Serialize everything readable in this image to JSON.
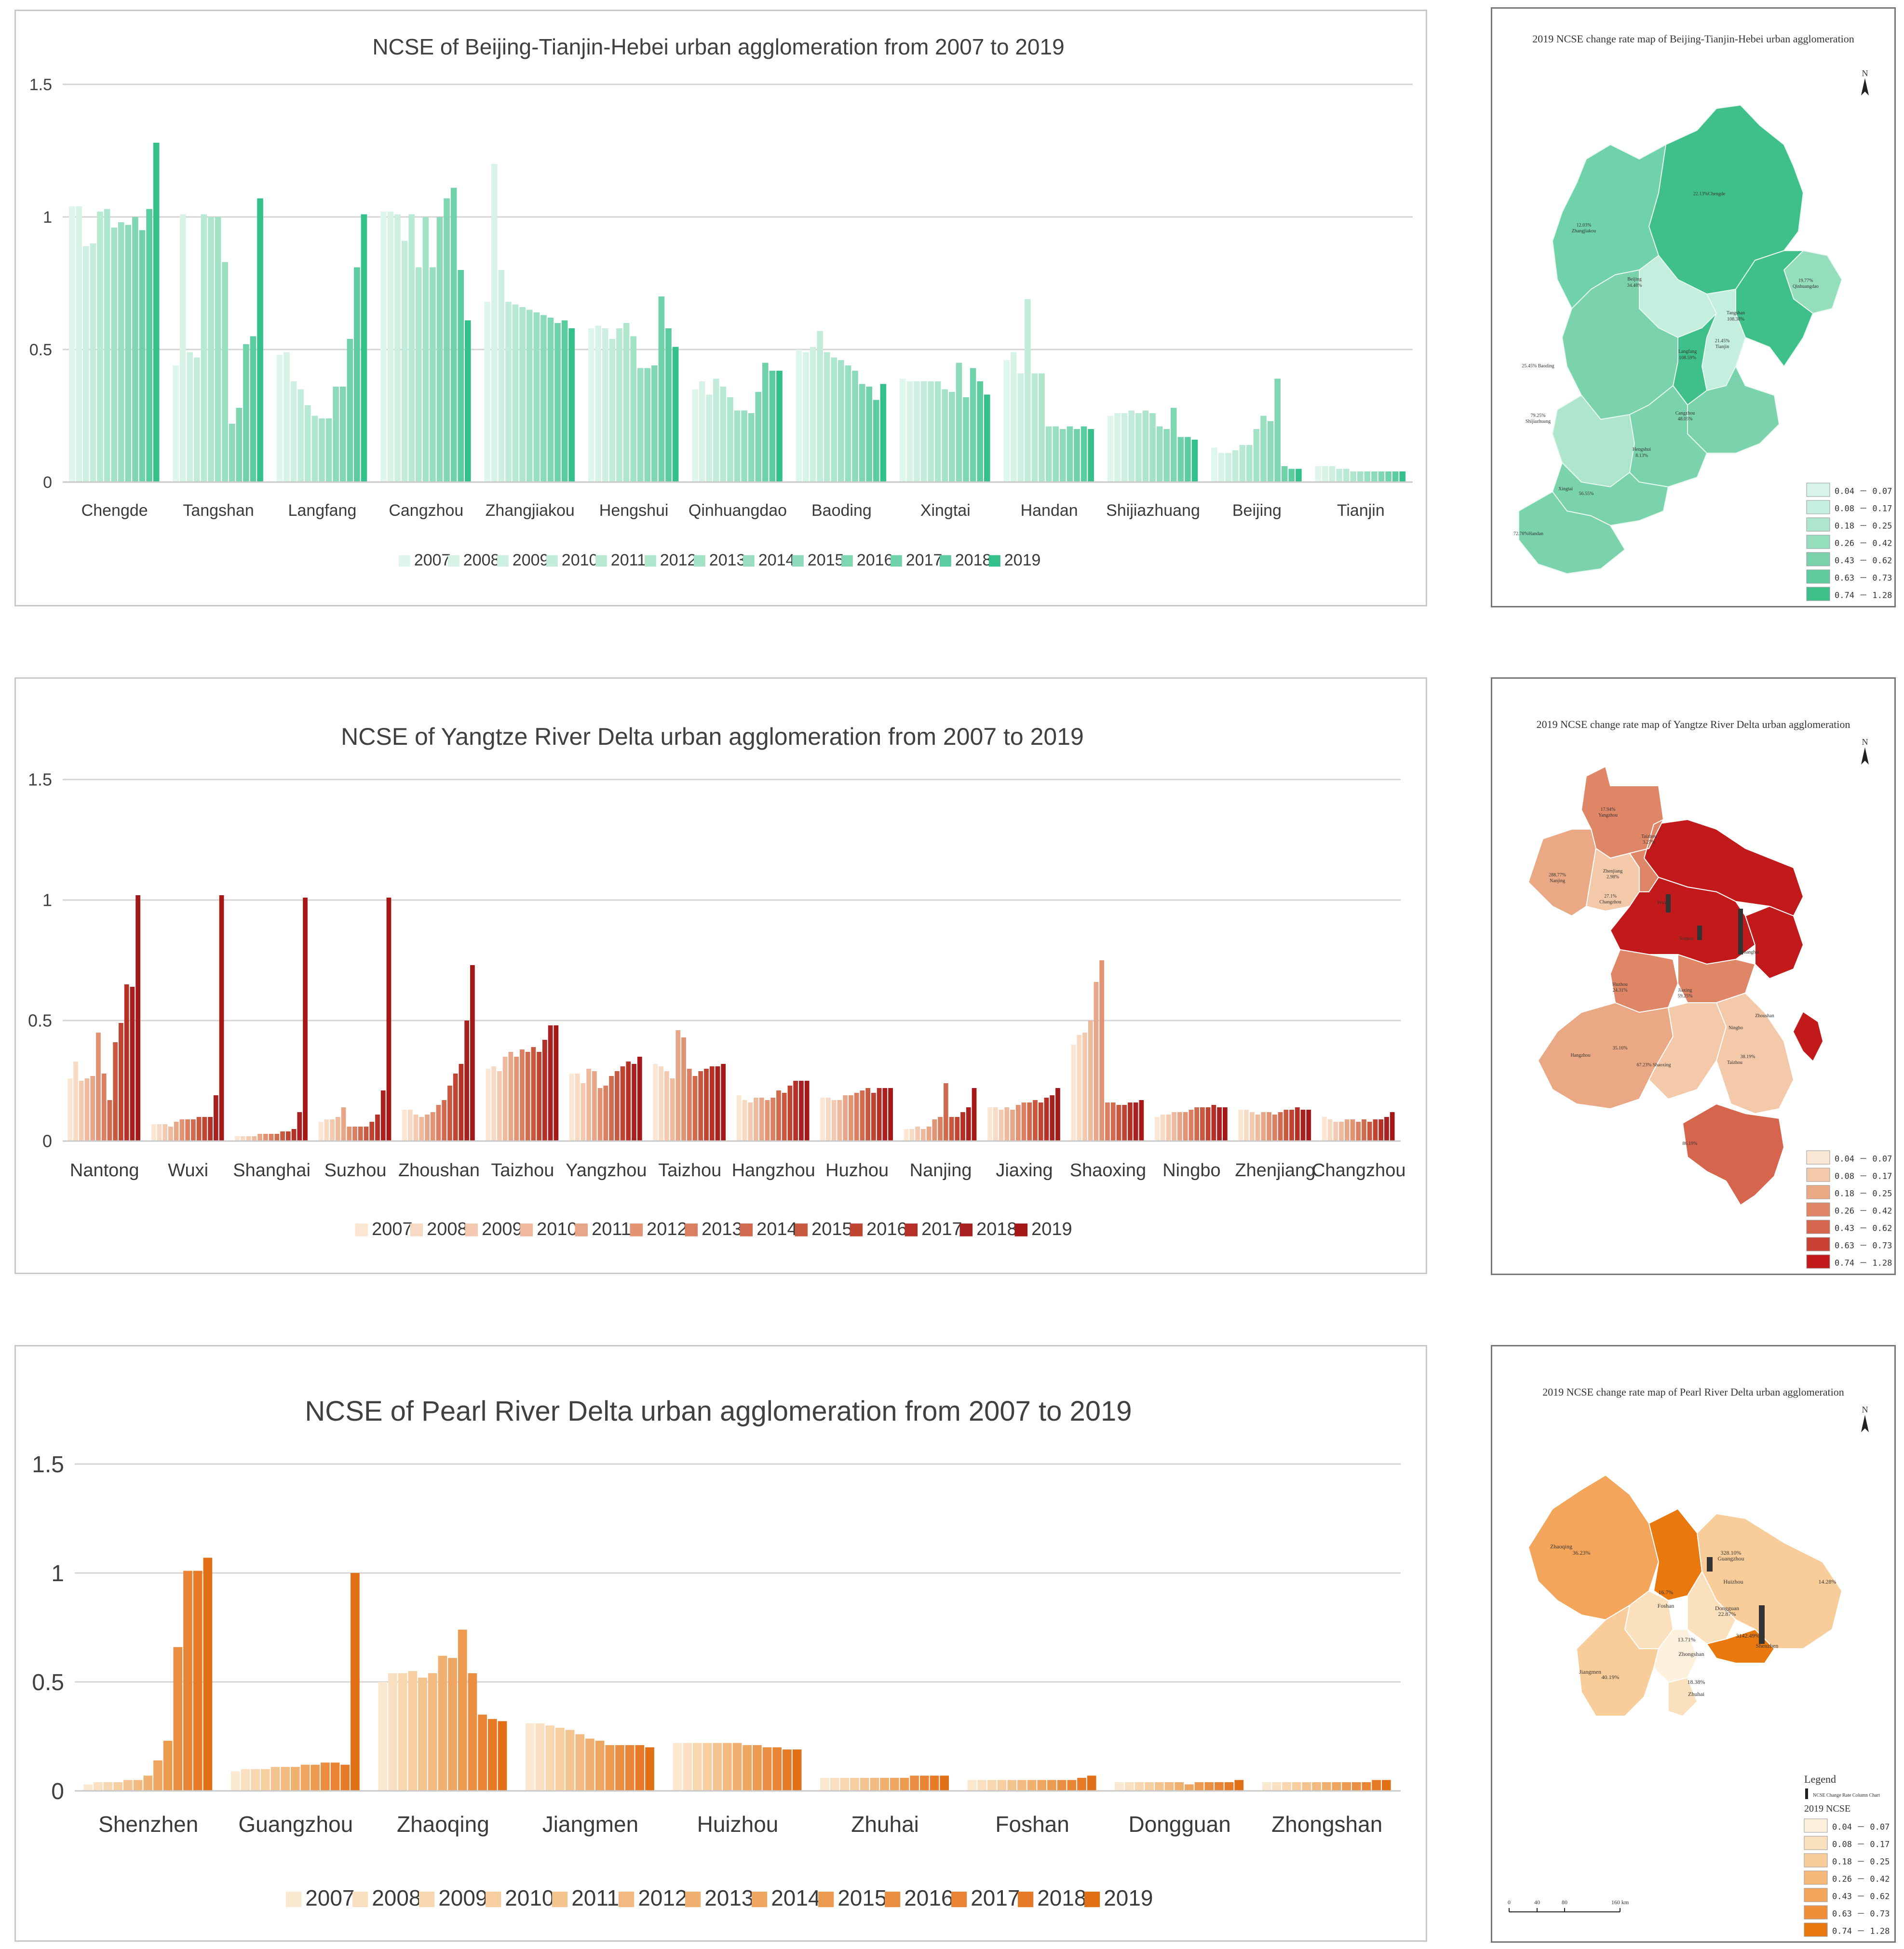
{
  "years": [
    "2007",
    "2008",
    "2009",
    "2010",
    "2011",
    "2012",
    "2013",
    "2014",
    "2015",
    "2016",
    "2017",
    "2018",
    "2019"
  ],
  "chart_data": [
    {
      "type": "bar",
      "title": "NCSE  of  Beijing-Tianjin-Hebei urban agglomeration from 2007 to 2019",
      "ylim": [
        0,
        1.5
      ],
      "yticks": [
        "0",
        "0.5",
        "1",
        "1.5"
      ],
      "yticks_values": [
        0,
        0.5,
        1,
        1.5
      ],
      "colors": [
        "#dff6ec",
        "#d6f3e6",
        "#ccefe0",
        "#c2ecda",
        "#b8e9d3",
        "#aee6cd",
        "#a3e2c6",
        "#98dec0",
        "#8cdaba",
        "#7ed6b2",
        "#6fd2aa",
        "#5bcc9f",
        "#33c08a"
      ],
      "categories": [
        "Chengde",
        "Tangshan",
        "Langfang",
        "Cangzhou",
        "Zhangjiakou",
        "Hengshui",
        "Qinhuangdao",
        "Baoding",
        "Xingtai",
        "Handan",
        "Shijiazhuang",
        "Beijing",
        "Tianjin"
      ],
      "series": [
        {
          "name": "2007",
          "values": [
            1.04,
            0.44,
            0.48,
            1.02,
            0.68,
            0.58,
            0.35,
            0.5,
            0.39,
            0.46,
            0.25,
            0.13,
            0.06
          ]
        },
        {
          "name": "2008",
          "values": [
            1.04,
            1.01,
            0.49,
            1.02,
            1.2,
            0.59,
            0.38,
            0.49,
            0.38,
            0.49,
            0.26,
            0.11,
            0.06
          ]
        },
        {
          "name": "2009",
          "values": [
            0.89,
            0.49,
            0.38,
            1.01,
            0.8,
            0.58,
            0.33,
            0.51,
            0.38,
            0.41,
            0.26,
            0.11,
            0.06
          ]
        },
        {
          "name": "2010",
          "values": [
            0.9,
            0.47,
            0.35,
            0.91,
            0.68,
            0.54,
            0.39,
            0.57,
            0.38,
            0.69,
            0.27,
            0.12,
            0.05
          ]
        },
        {
          "name": "2011",
          "values": [
            1.02,
            1.01,
            0.29,
            1.01,
            0.67,
            0.58,
            0.36,
            0.49,
            0.38,
            0.41,
            0.26,
            0.14,
            0.05
          ]
        },
        {
          "name": "2012",
          "values": [
            1.03,
            1.0,
            0.25,
            0.81,
            0.66,
            0.6,
            0.32,
            0.47,
            0.38,
            0.41,
            0.27,
            0.14,
            0.04
          ]
        },
        {
          "name": "2013",
          "values": [
            0.96,
            1.0,
            0.24,
            1.0,
            0.65,
            0.55,
            0.27,
            0.46,
            0.35,
            0.21,
            0.26,
            0.2,
            0.04
          ]
        },
        {
          "name": "2014",
          "values": [
            0.98,
            0.83,
            0.24,
            0.81,
            0.64,
            0.43,
            0.27,
            0.44,
            0.34,
            0.21,
            0.21,
            0.25,
            0.04
          ]
        },
        {
          "name": "2015",
          "values": [
            0.97,
            0.22,
            0.36,
            1.0,
            0.63,
            0.43,
            0.26,
            0.42,
            0.45,
            0.2,
            0.2,
            0.23,
            0.04
          ]
        },
        {
          "name": "2016",
          "values": [
            1.0,
            0.28,
            0.36,
            1.07,
            0.62,
            0.44,
            0.34,
            0.37,
            0.32,
            0.21,
            0.28,
            0.39,
            0.04
          ]
        },
        {
          "name": "2017",
          "values": [
            0.95,
            0.52,
            0.54,
            1.11,
            0.6,
            0.7,
            0.45,
            0.36,
            0.43,
            0.2,
            0.17,
            0.06,
            0.04
          ]
        },
        {
          "name": "2018",
          "values": [
            1.03,
            0.55,
            0.81,
            0.8,
            0.61,
            0.58,
            0.42,
            0.31,
            0.38,
            0.21,
            0.17,
            0.05,
            0.04
          ]
        },
        {
          "name": "2019",
          "values": [
            1.28,
            1.07,
            1.01,
            0.61,
            0.58,
            0.51,
            0.42,
            0.37,
            0.33,
            0.2,
            0.16,
            0.05,
            0.04
          ]
        }
      ]
    },
    {
      "type": "bar",
      "title": "NCSE of  Yangtze River Delta  urban agglomeration from 2007 to 2019",
      "ylim": [
        0,
        1.5
      ],
      "yticks": [
        "0",
        "0.5",
        "1",
        "1.5"
      ],
      "yticks_values": [
        0,
        0.5,
        1,
        1.5
      ],
      "colors": [
        "#fbe6d4",
        "#f7dac4",
        "#f3cab0",
        "#eeb99d",
        "#e8a688",
        "#e29374",
        "#da7f61",
        "#d16b50",
        "#c8583f",
        "#bf4432",
        "#b53127",
        "#a82020",
        "#a51818"
      ],
      "categories": [
        "Nantong",
        "Wuxi",
        "Shanghai",
        "Suzhou",
        "Zhoushan",
        "Taizhou",
        "Yangzhou",
        "Taizhou",
        "Hangzhou",
        "Huzhou",
        "Nanjing",
        "Jiaxing",
        "Shaoxing",
        "Ningbo",
        "Zhenjiang",
        "Changzhou"
      ],
      "series": [
        {
          "name": "2007",
          "values": [
            0.26,
            0.07,
            0.02,
            0.08,
            0.13,
            0.3,
            0.28,
            0.32,
            0.19,
            0.18,
            0.05,
            0.14,
            0.4,
            0.1,
            0.13,
            0.1
          ]
        },
        {
          "name": "2008",
          "values": [
            0.33,
            0.07,
            0.02,
            0.09,
            0.13,
            0.31,
            0.28,
            0.31,
            0.17,
            0.18,
            0.05,
            0.14,
            0.44,
            0.11,
            0.13,
            0.09
          ]
        },
        {
          "name": "2009",
          "values": [
            0.25,
            0.07,
            0.02,
            0.09,
            0.11,
            0.29,
            0.24,
            0.29,
            0.16,
            0.17,
            0.06,
            0.13,
            0.45,
            0.11,
            0.12,
            0.08
          ]
        },
        {
          "name": "2010",
          "values": [
            0.26,
            0.06,
            0.02,
            0.1,
            0.1,
            0.35,
            0.3,
            0.26,
            0.18,
            0.17,
            0.05,
            0.14,
            0.5,
            0.12,
            0.11,
            0.08
          ]
        },
        {
          "name": "2011",
          "values": [
            0.27,
            0.08,
            0.03,
            0.14,
            0.11,
            0.37,
            0.29,
            0.46,
            0.18,
            0.19,
            0.06,
            0.13,
            0.66,
            0.12,
            0.12,
            0.09
          ]
        },
        {
          "name": "2012",
          "values": [
            0.45,
            0.09,
            0.03,
            0.06,
            0.12,
            0.35,
            0.22,
            0.43,
            0.17,
            0.19,
            0.09,
            0.15,
            0.75,
            0.12,
            0.12,
            0.09
          ]
        },
        {
          "name": "2013",
          "values": [
            0.28,
            0.09,
            0.03,
            0.06,
            0.15,
            0.38,
            0.23,
            0.3,
            0.18,
            0.2,
            0.1,
            0.16,
            0.16,
            0.13,
            0.11,
            0.08
          ]
        },
        {
          "name": "2014",
          "values": [
            0.17,
            0.09,
            0.03,
            0.06,
            0.17,
            0.37,
            0.27,
            0.27,
            0.21,
            0.21,
            0.24,
            0.16,
            0.16,
            0.14,
            0.12,
            0.09
          ]
        },
        {
          "name": "2015",
          "values": [
            0.41,
            0.1,
            0.04,
            0.06,
            0.23,
            0.39,
            0.29,
            0.29,
            0.2,
            0.22,
            0.1,
            0.17,
            0.15,
            0.14,
            0.13,
            0.08
          ]
        },
        {
          "name": "2016",
          "values": [
            0.49,
            0.1,
            0.04,
            0.08,
            0.28,
            0.37,
            0.31,
            0.3,
            0.23,
            0.2,
            0.1,
            0.16,
            0.15,
            0.14,
            0.13,
            0.09
          ]
        },
        {
          "name": "2017",
          "values": [
            0.65,
            0.1,
            0.05,
            0.11,
            0.32,
            0.42,
            0.33,
            0.31,
            0.25,
            0.22,
            0.12,
            0.18,
            0.16,
            0.15,
            0.14,
            0.09
          ]
        },
        {
          "name": "2018",
          "values": [
            0.64,
            0.19,
            0.12,
            0.21,
            0.5,
            0.48,
            0.32,
            0.31,
            0.25,
            0.22,
            0.14,
            0.19,
            0.16,
            0.14,
            0.13,
            0.1
          ]
        },
        {
          "name": "2019",
          "values": [
            1.02,
            1.02,
            1.01,
            1.01,
            0.73,
            0.48,
            0.35,
            0.32,
            0.25,
            0.22,
            0.22,
            0.22,
            0.17,
            0.14,
            0.13,
            0.12
          ]
        }
      ]
    },
    {
      "type": "bar",
      "title": "NCSE of  Pearl River  Delta urban agglomeration from 2007 to 2019",
      "ylim": [
        0,
        1.5
      ],
      "yticks": [
        "0",
        "0.5",
        "1",
        "1.5"
      ],
      "yticks_values": [
        0,
        0.5,
        1,
        1.5
      ],
      "colors": [
        "#fbe8d0",
        "#fae0c0",
        "#f8d7b0",
        "#f6cea0",
        "#f4c490",
        "#f2ba80",
        "#f0b070",
        "#eea560",
        "#ec9a50",
        "#ea8f42",
        "#e88434",
        "#e67a26",
        "#e06f16"
      ],
      "categories": [
        "Shenzhen",
        "Guangzhou",
        "Zhaoqing",
        "Jiangmen",
        "Huizhou",
        "Zhuhai",
        "Foshan",
        "Dongguan",
        "Zhongshan"
      ],
      "series": [
        {
          "name": "2007",
          "values": [
            0.03,
            0.09,
            0.5,
            0.31,
            0.22,
            0.06,
            0.05,
            0.04,
            0.04
          ]
        },
        {
          "name": "2008",
          "values": [
            0.04,
            0.1,
            0.54,
            0.31,
            0.22,
            0.06,
            0.05,
            0.04,
            0.04
          ]
        },
        {
          "name": "2009",
          "values": [
            0.04,
            0.1,
            0.54,
            0.3,
            0.22,
            0.06,
            0.05,
            0.04,
            0.04
          ]
        },
        {
          "name": "2010",
          "values": [
            0.04,
            0.1,
            0.55,
            0.29,
            0.22,
            0.06,
            0.05,
            0.04,
            0.04
          ]
        },
        {
          "name": "2011",
          "values": [
            0.05,
            0.11,
            0.52,
            0.28,
            0.22,
            0.06,
            0.05,
            0.04,
            0.04
          ]
        },
        {
          "name": "2012",
          "values": [
            0.05,
            0.11,
            0.54,
            0.26,
            0.22,
            0.06,
            0.05,
            0.04,
            0.04
          ]
        },
        {
          "name": "2013",
          "values": [
            0.07,
            0.11,
            0.62,
            0.24,
            0.22,
            0.06,
            0.05,
            0.04,
            0.04
          ]
        },
        {
          "name": "2014",
          "values": [
            0.14,
            0.12,
            0.61,
            0.23,
            0.21,
            0.06,
            0.05,
            0.03,
            0.04
          ]
        },
        {
          "name": "2015",
          "values": [
            0.23,
            0.12,
            0.74,
            0.21,
            0.21,
            0.06,
            0.05,
            0.04,
            0.04
          ]
        },
        {
          "name": "2016",
          "values": [
            0.66,
            0.13,
            0.54,
            0.21,
            0.2,
            0.07,
            0.05,
            0.04,
            0.04
          ]
        },
        {
          "name": "2017",
          "values": [
            1.01,
            0.13,
            0.35,
            0.21,
            0.2,
            0.07,
            0.05,
            0.04,
            0.04
          ]
        },
        {
          "name": "2018",
          "values": [
            1.01,
            0.12,
            0.33,
            0.21,
            0.19,
            0.07,
            0.06,
            0.04,
            0.05
          ]
        },
        {
          "name": "2019",
          "values": [
            1.07,
            1.0,
            0.32,
            0.2,
            0.19,
            0.07,
            0.07,
            0.05,
            0.05
          ]
        }
      ]
    }
  ],
  "maps": [
    {
      "title": "2019  NCSE  change rate map of  Beijing-Tianjin-Hebei urban agglomeration",
      "north": "N",
      "legend": [
        "0.04 － 0.07",
        "0.08 － 0.17",
        "0.18 － 0.25",
        "0.26 － 0.42",
        "0.43 － 0.62",
        "0.63 － 0.73",
        "0.74 － 1.28"
      ],
      "legend_colors": [
        "#d8f4e9",
        "#c4eedd",
        "#aee6cd",
        "#94ddbd",
        "#7ad3ad",
        "#5fca9c",
        "#3fc08a"
      ],
      "labels": [
        "12.03%",
        "Zhangjiakou",
        "22.13%Chengde",
        "Beijing",
        "34.48%",
        "Tangshan",
        "108.38%",
        "19.77%",
        "Qinhuangdao",
        "21.45%",
        "Tianjin",
        "Langfang",
        "108.59%",
        "25.45% Baoding",
        "Cangzhou",
        "48.05%",
        "79.25%",
        "Shijiazhuang",
        "Hengshui",
        "8.13%",
        "Xingtai",
        "56.55%",
        "72.78%Handan"
      ]
    },
    {
      "title": "2019  NCSE change rate map of Yangtze River Delta urban agglomeration",
      "north": "N",
      "legend": [
        "0.04 － 0.07",
        "0.08 － 0.17",
        "0.18 － 0.25",
        "0.26 － 0.42",
        "0.43 － 0.62",
        "0.63 － 0.73",
        "0.74 － 1.28"
      ],
      "legend_colors": [
        "#fbe8d4",
        "#f3c9aa",
        "#eaa884",
        "#df8666",
        "#d5654d",
        "#c94235",
        "#c21a1a"
      ],
      "labels": [
        "17.94%",
        "Yangzhou",
        "Taizhou",
        "3.27%",
        "288.77%",
        "Nanjing",
        "Zhenjiang",
        "2.98%",
        "27.1%",
        "Changzhou",
        "Wuxi",
        "Suzhou",
        "Shanghai",
        "Huzhou",
        "24.31%",
        "Jiaxing",
        "59.25%",
        "Zhoushan",
        "Hangzhou",
        "35.16%",
        "67.23% Shaoxing",
        "Ningbo",
        "38.19%",
        "Taizhou",
        "86.19%"
      ]
    },
    {
      "title": "2019  NCSE change rate map of Pearl River Delta urban agglomeration",
      "north": "N",
      "legend_title": "Legend",
      "legend_sub": "NCSE Change Rate Column Chart",
      "legend_heading": "2019  NCSE",
      "legend": [
        "0.04 － 0.07",
        "0.08 － 0.17",
        "0.18 － 0.25",
        "0.26 － 0.42",
        "0.43 － 0.62",
        "0.63 － 0.73",
        "0.74 － 1.28"
      ],
      "legend_colors": [
        "#fdf0dc",
        "#fbe0bd",
        "#f9cd99",
        "#f6b878",
        "#f3a55c",
        "#ef8f3a",
        "#e9790f"
      ],
      "scale": [
        "0",
        "40",
        "80",
        "160 km"
      ],
      "labels": [
        "Zhaoqing",
        "36.23%",
        "328.10%",
        "Guangzhou",
        "Huizhou",
        "14.28%",
        "16.7%",
        "Foshan",
        "Dongguan",
        "22.87%",
        "13.71%",
        "Zhongshan",
        "Shenzhen",
        "3142.49%",
        "Jiangmen",
        "40.19%",
        "18.38%",
        "Zhuhai"
      ]
    }
  ]
}
